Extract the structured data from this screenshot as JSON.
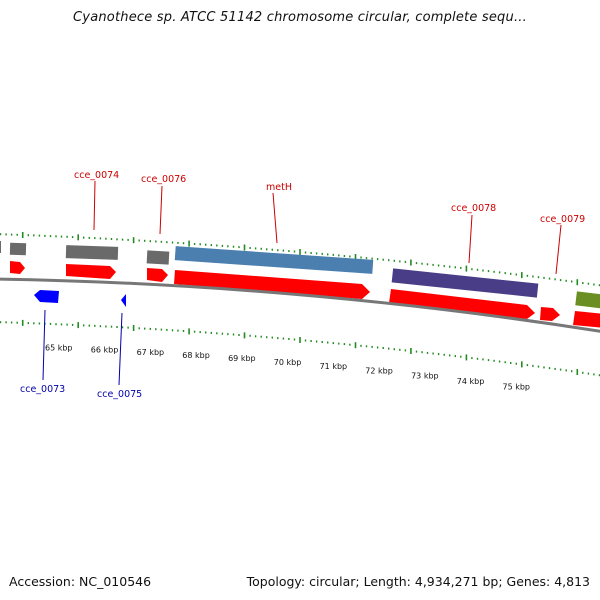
{
  "title": "Cyanothece sp. ATCC 51142 chromosome circular, complete sequ...",
  "footer": {
    "accession": "Accession: NC_010546",
    "summary": "Topology: circular; Length: 4,934,271 bp; Genes: 4,813"
  },
  "colors": {
    "forward_cds": "#ff0000",
    "reverse_cds": "#0000ff",
    "backbone": "#777777",
    "tick": "#228b22",
    "label_forward": "#cc0000",
    "label_reverse": "#0000aa"
  },
  "scale": {
    "start_kbp": 64.0,
    "end_kbp": 76.0,
    "labels": [
      "65 kbp",
      "66 kbp",
      "67 kbp",
      "68 kbp",
      "69 kbp",
      "70 kbp",
      "71 kbp",
      "72 kbp",
      "73 kbp",
      "74 kbp",
      "75 kbp"
    ]
  },
  "labels": {
    "cce_0073": "cce_0073",
    "cce_0074": "cce_0074",
    "cce_0075": "cce_0075",
    "cce_0076": "cce_0076",
    "metH": "metH",
    "cce_0078": "cce_0078",
    "cce_0079": "cce_0079"
  }
}
